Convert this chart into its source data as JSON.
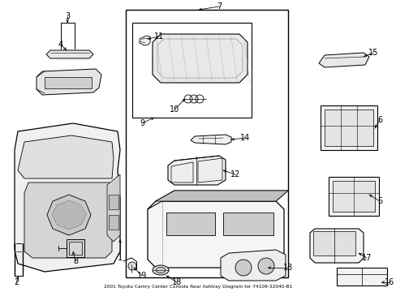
{
  "title": "2001 Toyota Camry Center Console Rear Ashtray Diagram for 74109-32040-B1",
  "background_color": "#ffffff",
  "line_color": "#000000",
  "figsize": [
    4.89,
    3.6
  ],
  "dpi": 100
}
